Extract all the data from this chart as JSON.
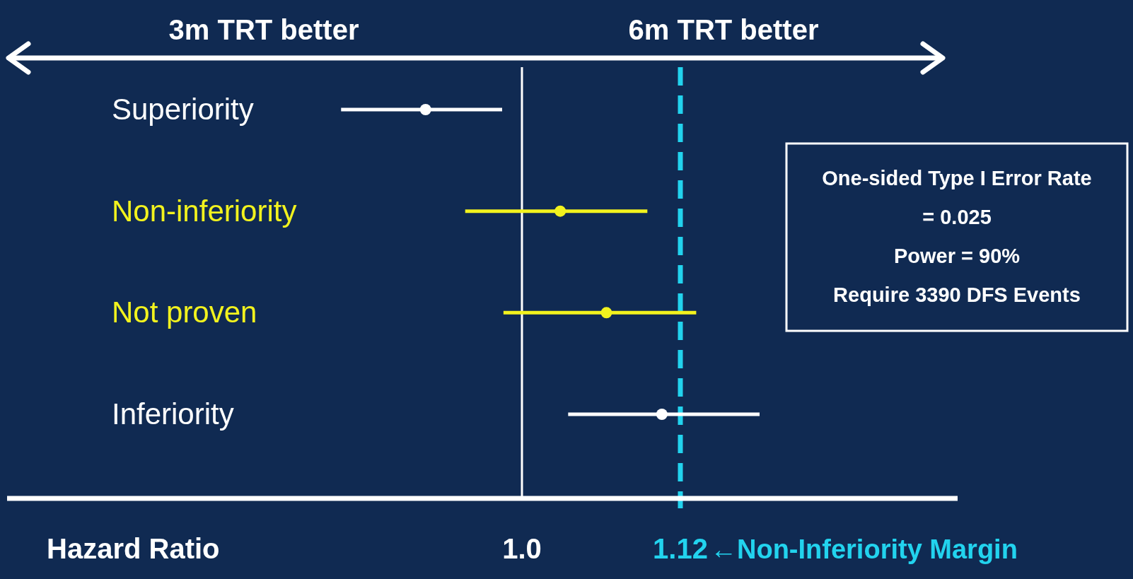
{
  "chart_data": {
    "type": "scatter",
    "orientation": "horizontal",
    "categories": [
      "Superiority",
      "Non-inferiority",
      "Not proven",
      "Inferiority"
    ],
    "values": [
      0.927,
      1.029,
      1.064,
      1.106
    ],
    "errors": [
      [
        0.863,
        0.985
      ],
      [
        0.957,
        1.095
      ],
      [
        0.986,
        1.132
      ],
      [
        1.035,
        1.18
      ]
    ],
    "colors": [
      "#ffffff",
      "#f2f21e",
      "#f2f21e",
      "#ffffff"
    ],
    "marker": "circle",
    "xlim": [
      0.61,
      1.33
    ],
    "xticks": [
      {
        "value": 1.0,
        "label": "1.0"
      },
      {
        "value": 1.12,
        "label": "1.12"
      }
    ],
    "xlabel": "Hazard Ratio",
    "ref_lines": [
      {
        "axis": "x",
        "value": 1.0,
        "color": "#ffffff",
        "line_style": "solid"
      },
      {
        "axis": "x",
        "value": 1.12,
        "label": "←Non-Inferiority Margin",
        "color": "#22d3ee",
        "line_style": "dashed"
      }
    ],
    "annotations": [
      "3m TRT better",
      "6m TRT better",
      "One-sided Type I Error Rate\n= 0.025\nPower = 90%\nRequire 3390 DFS Events"
    ]
  }
}
